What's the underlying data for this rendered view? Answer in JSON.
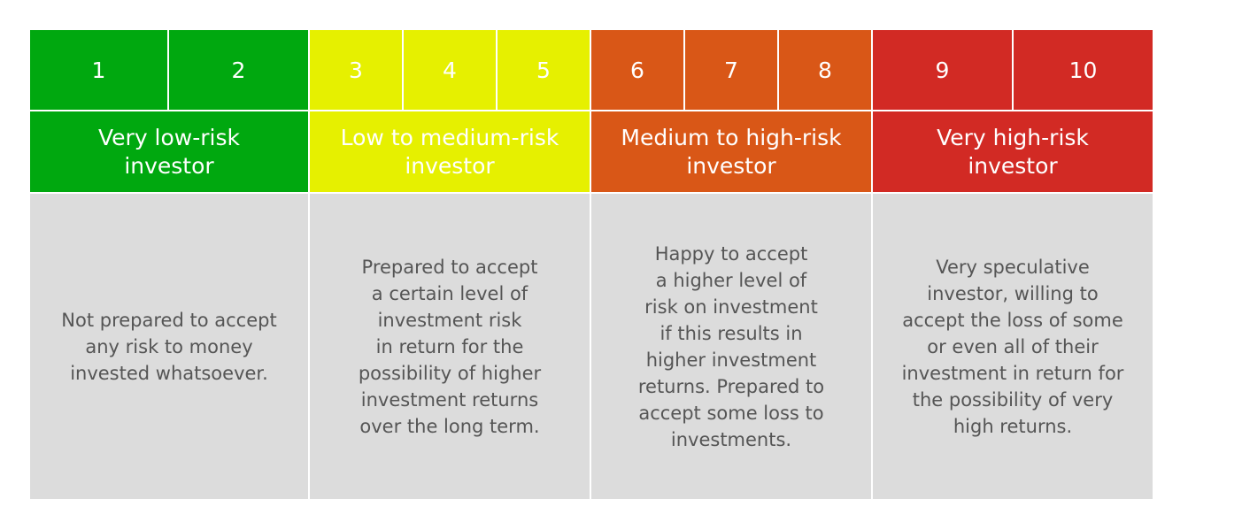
{
  "scale": {
    "numbers": [
      "1",
      "2",
      "3",
      "4",
      "5",
      "6",
      "7",
      "8",
      "9",
      "10"
    ],
    "groups": [
      {
        "label": "Very low-risk\ninvestor",
        "color": "#00a80f",
        "description": "Not prepared to accept\nany risk to money\ninvested whatsoever."
      },
      {
        "label": "Low to medium-risk\ninvestor",
        "color": "#e6f000",
        "description": "Prepared to accept\na certain level of\ninvestment risk\nin return for the\npossibility of higher\ninvestment returns\nover the long term."
      },
      {
        "label": "Medium to high-risk\ninvestor",
        "color": "#d95717",
        "description": "Happy to accept\na higher level of\nrisk on investment\nif this results in\nhigher investment\nreturns. Prepared to\naccept some loss to\ninvestments."
      },
      {
        "label": "Very high-risk\ninvestor",
        "color": "#d22a24",
        "description": "Very speculative\ninvestor, willing to\naccept the loss of some\nor even all of their\ninvestment in return for\nthe possibility of very\nhigh returns."
      }
    ]
  }
}
